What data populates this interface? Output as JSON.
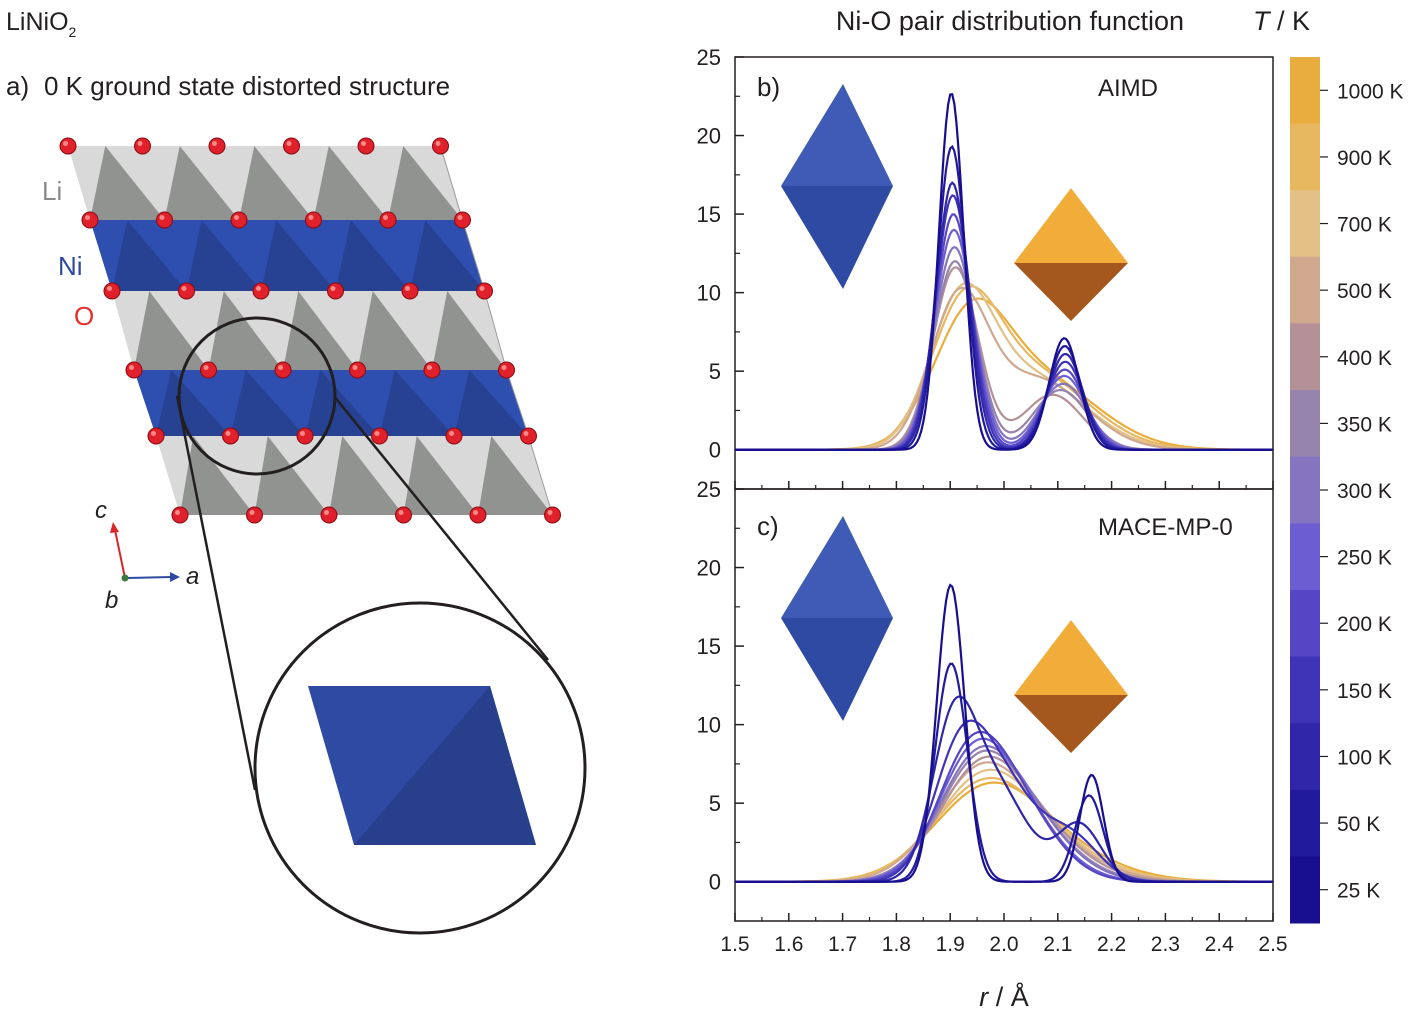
{
  "left_panel": {
    "compound": {
      "base": "LiNiO",
      "subscript": "2"
    },
    "panel_label": "a)",
    "panel_title": "0 K ground state distorted structure",
    "layer_labels": [
      {
        "text": "Li",
        "color": "#8a8a8a"
      },
      {
        "text": "Ni",
        "color": "#2e4a9e"
      },
      {
        "text": "O",
        "color": "#e0322a"
      }
    ],
    "axes_labels": {
      "c": "c",
      "b": "b",
      "a": "a"
    }
  },
  "figure_title": "Ni-O pair distribution function",
  "colorbar": {
    "title_italic": "T",
    "title_rest": " / K",
    "labels": [
      "1000 K",
      "900 K",
      "700 K",
      "500 K",
      "400 K",
      "350 K",
      "300 K",
      "250 K",
      "200 K",
      "150 K",
      "100 K",
      "50 K",
      "25 K"
    ],
    "colors": [
      "#e8ad3e",
      "#e8b860",
      "#e2c086",
      "#cfa88e",
      "#b39196",
      "#9684ad",
      "#8575c0",
      "#6c5ed2",
      "#5646c6",
      "#3f33b8",
      "#2f26aa",
      "#221a9c",
      "#170f8f"
    ]
  },
  "colors": {
    "cold": "#1c1599",
    "hot": "#f0a830",
    "octahedron_blue": "#3451ae",
    "octahedron_orange": "#f2ac3a"
  },
  "chart_data": [
    {
      "type": "line",
      "panel_label": "b)",
      "method_label": "AIMD",
      "xlabel": "",
      "ylabel": "",
      "xlim": [
        1.5,
        2.5
      ],
      "ylim": [
        -2.5,
        25
      ],
      "x_ticks": [],
      "y_ticks": [
        0,
        5,
        10,
        15,
        20,
        25
      ],
      "series": [
        {
          "temperature_K": 25,
          "peaks": [
            [
              1.902,
              22.7,
              0.023
            ],
            [
              2.112,
              7.1,
              0.028
            ]
          ],
          "baseline": 0
        },
        {
          "temperature_K": 50,
          "peaks": [
            [
              1.903,
              19.3,
              0.027
            ],
            [
              2.113,
              6.6,
              0.031
            ]
          ],
          "baseline": 0
        },
        {
          "temperature_K": 100,
          "peaks": [
            [
              1.904,
              17.0,
              0.03
            ],
            [
              2.114,
              6.1,
              0.033
            ]
          ],
          "baseline": 0
        },
        {
          "temperature_K": 150,
          "peaks": [
            [
              1.905,
              16.2,
              0.032
            ],
            [
              2.114,
              5.6,
              0.035
            ]
          ],
          "baseline": 0
        },
        {
          "temperature_K": 200,
          "peaks": [
            [
              1.906,
              15.0,
              0.034
            ],
            [
              2.113,
              5.1,
              0.038
            ]
          ],
          "baseline": 0
        },
        {
          "temperature_K": 250,
          "peaks": [
            [
              1.907,
              14.0,
              0.036
            ],
            [
              2.112,
              4.7,
              0.041
            ]
          ],
          "baseline": 0
        },
        {
          "temperature_K": 300,
          "peaks": [
            [
              1.908,
              12.9,
              0.038
            ],
            [
              2.11,
              4.2,
              0.045
            ]
          ],
          "baseline": 0
        },
        {
          "temperature_K": 350,
          "peaks": [
            [
              1.909,
              12.0,
              0.04
            ],
            [
              2.105,
              3.8,
              0.05
            ]
          ],
          "baseline": 0
        },
        {
          "temperature_K": 400,
          "peaks": [
            [
              1.91,
              11.6,
              0.042
            ],
            [
              2.09,
              3.5,
              0.055
            ]
          ],
          "baseline": 0
        },
        {
          "temperature_K": 500,
          "peaks": [
            [
              1.915,
              9.0,
              0.053
            ],
            [
              2.06,
              4.5,
              0.09
            ]
          ],
          "baseline": 0
        },
        {
          "temperature_K": 700,
          "peaks": [
            [
              1.92,
              8.5,
              0.058
            ],
            [
              2.05,
              4.6,
              0.1
            ]
          ],
          "baseline": 0
        },
        {
          "temperature_K": 900,
          "peaks": [
            [
              1.925,
              7.8,
              0.062
            ],
            [
              2.05,
              4.9,
              0.105
            ]
          ],
          "baseline": 0
        },
        {
          "temperature_K": 1000,
          "peaks": [
            [
              1.935,
              7.0,
              0.068
            ],
            [
              2.06,
              4.6,
              0.11
            ]
          ],
          "baseline": 0
        }
      ]
    },
    {
      "type": "line",
      "panel_label": "c)",
      "method_label": "MACE-MP-0",
      "xlabel": "r / Å",
      "xlabel_italic": "r",
      "xlabel_rest": " / Å",
      "xlim": [
        1.5,
        2.5
      ],
      "ylim": [
        -2.5,
        25
      ],
      "x_ticks": [
        "1.5",
        "1.6",
        "1.7",
        "1.8",
        "1.9",
        "2.0",
        "2.1",
        "2.2",
        "2.3",
        "2.4",
        "2.5"
      ],
      "y_ticks": [
        0,
        5,
        10,
        15,
        20,
        25
      ],
      "series": [
        {
          "temperature_K": 25,
          "peaks": [
            [
              1.901,
              18.9,
              0.026
            ],
            [
              2.163,
              6.8,
              0.022
            ]
          ]
        },
        {
          "temperature_K": 50,
          "peaks": [
            [
              1.902,
              13.9,
              0.03
            ],
            [
              2.158,
              5.5,
              0.026
            ]
          ]
        },
        {
          "temperature_K": 100,
          "peaks": [
            [
              1.905,
              8.6,
              0.04
            ],
            [
              1.98,
              6.2,
              0.06
            ],
            [
              2.14,
              3.6,
              0.04
            ]
          ]
        },
        {
          "temperature_K": 150,
          "peaks": [
            [
              1.915,
              6.0,
              0.05
            ],
            [
              1.99,
              6.4,
              0.07
            ],
            [
              2.13,
              2.4,
              0.05
            ]
          ]
        },
        {
          "temperature_K": 200,
          "peaks": [
            [
              1.93,
              5.0,
              0.06
            ],
            [
              2.0,
              5.8,
              0.08
            ]
          ]
        },
        {
          "temperature_K": 250,
          "peaks": [
            [
              1.935,
              4.6,
              0.065
            ],
            [
              2.0,
              5.4,
              0.085
            ]
          ]
        },
        {
          "temperature_K": 300,
          "peaks": [
            [
              1.94,
              4.6,
              0.07
            ],
            [
              2.01,
              4.9,
              0.09
            ]
          ]
        },
        {
          "temperature_K": 350,
          "peaks": [
            [
              1.945,
              4.4,
              0.072
            ],
            [
              2.01,
              4.6,
              0.095
            ]
          ]
        },
        {
          "temperature_K": 400,
          "peaks": [
            [
              1.95,
              4.5,
              0.075
            ],
            [
              2.02,
              4.1,
              0.1
            ]
          ]
        },
        {
          "temperature_K": 500,
          "peaks": [
            [
              1.95,
              4.4,
              0.08
            ],
            [
              2.02,
              3.7,
              0.11
            ]
          ]
        },
        {
          "temperature_K": 700,
          "peaks": [
            [
              1.955,
              4.3,
              0.085
            ],
            [
              2.03,
              3.3,
              0.115
            ]
          ]
        },
        {
          "temperature_K": 900,
          "peaks": [
            [
              1.955,
              4.0,
              0.09
            ],
            [
              2.03,
              3.0,
              0.12
            ]
          ]
        },
        {
          "temperature_K": 1000,
          "peaks": [
            [
              1.96,
              3.9,
              0.095
            ],
            [
              2.04,
              2.8,
              0.125
            ]
          ]
        }
      ]
    }
  ]
}
